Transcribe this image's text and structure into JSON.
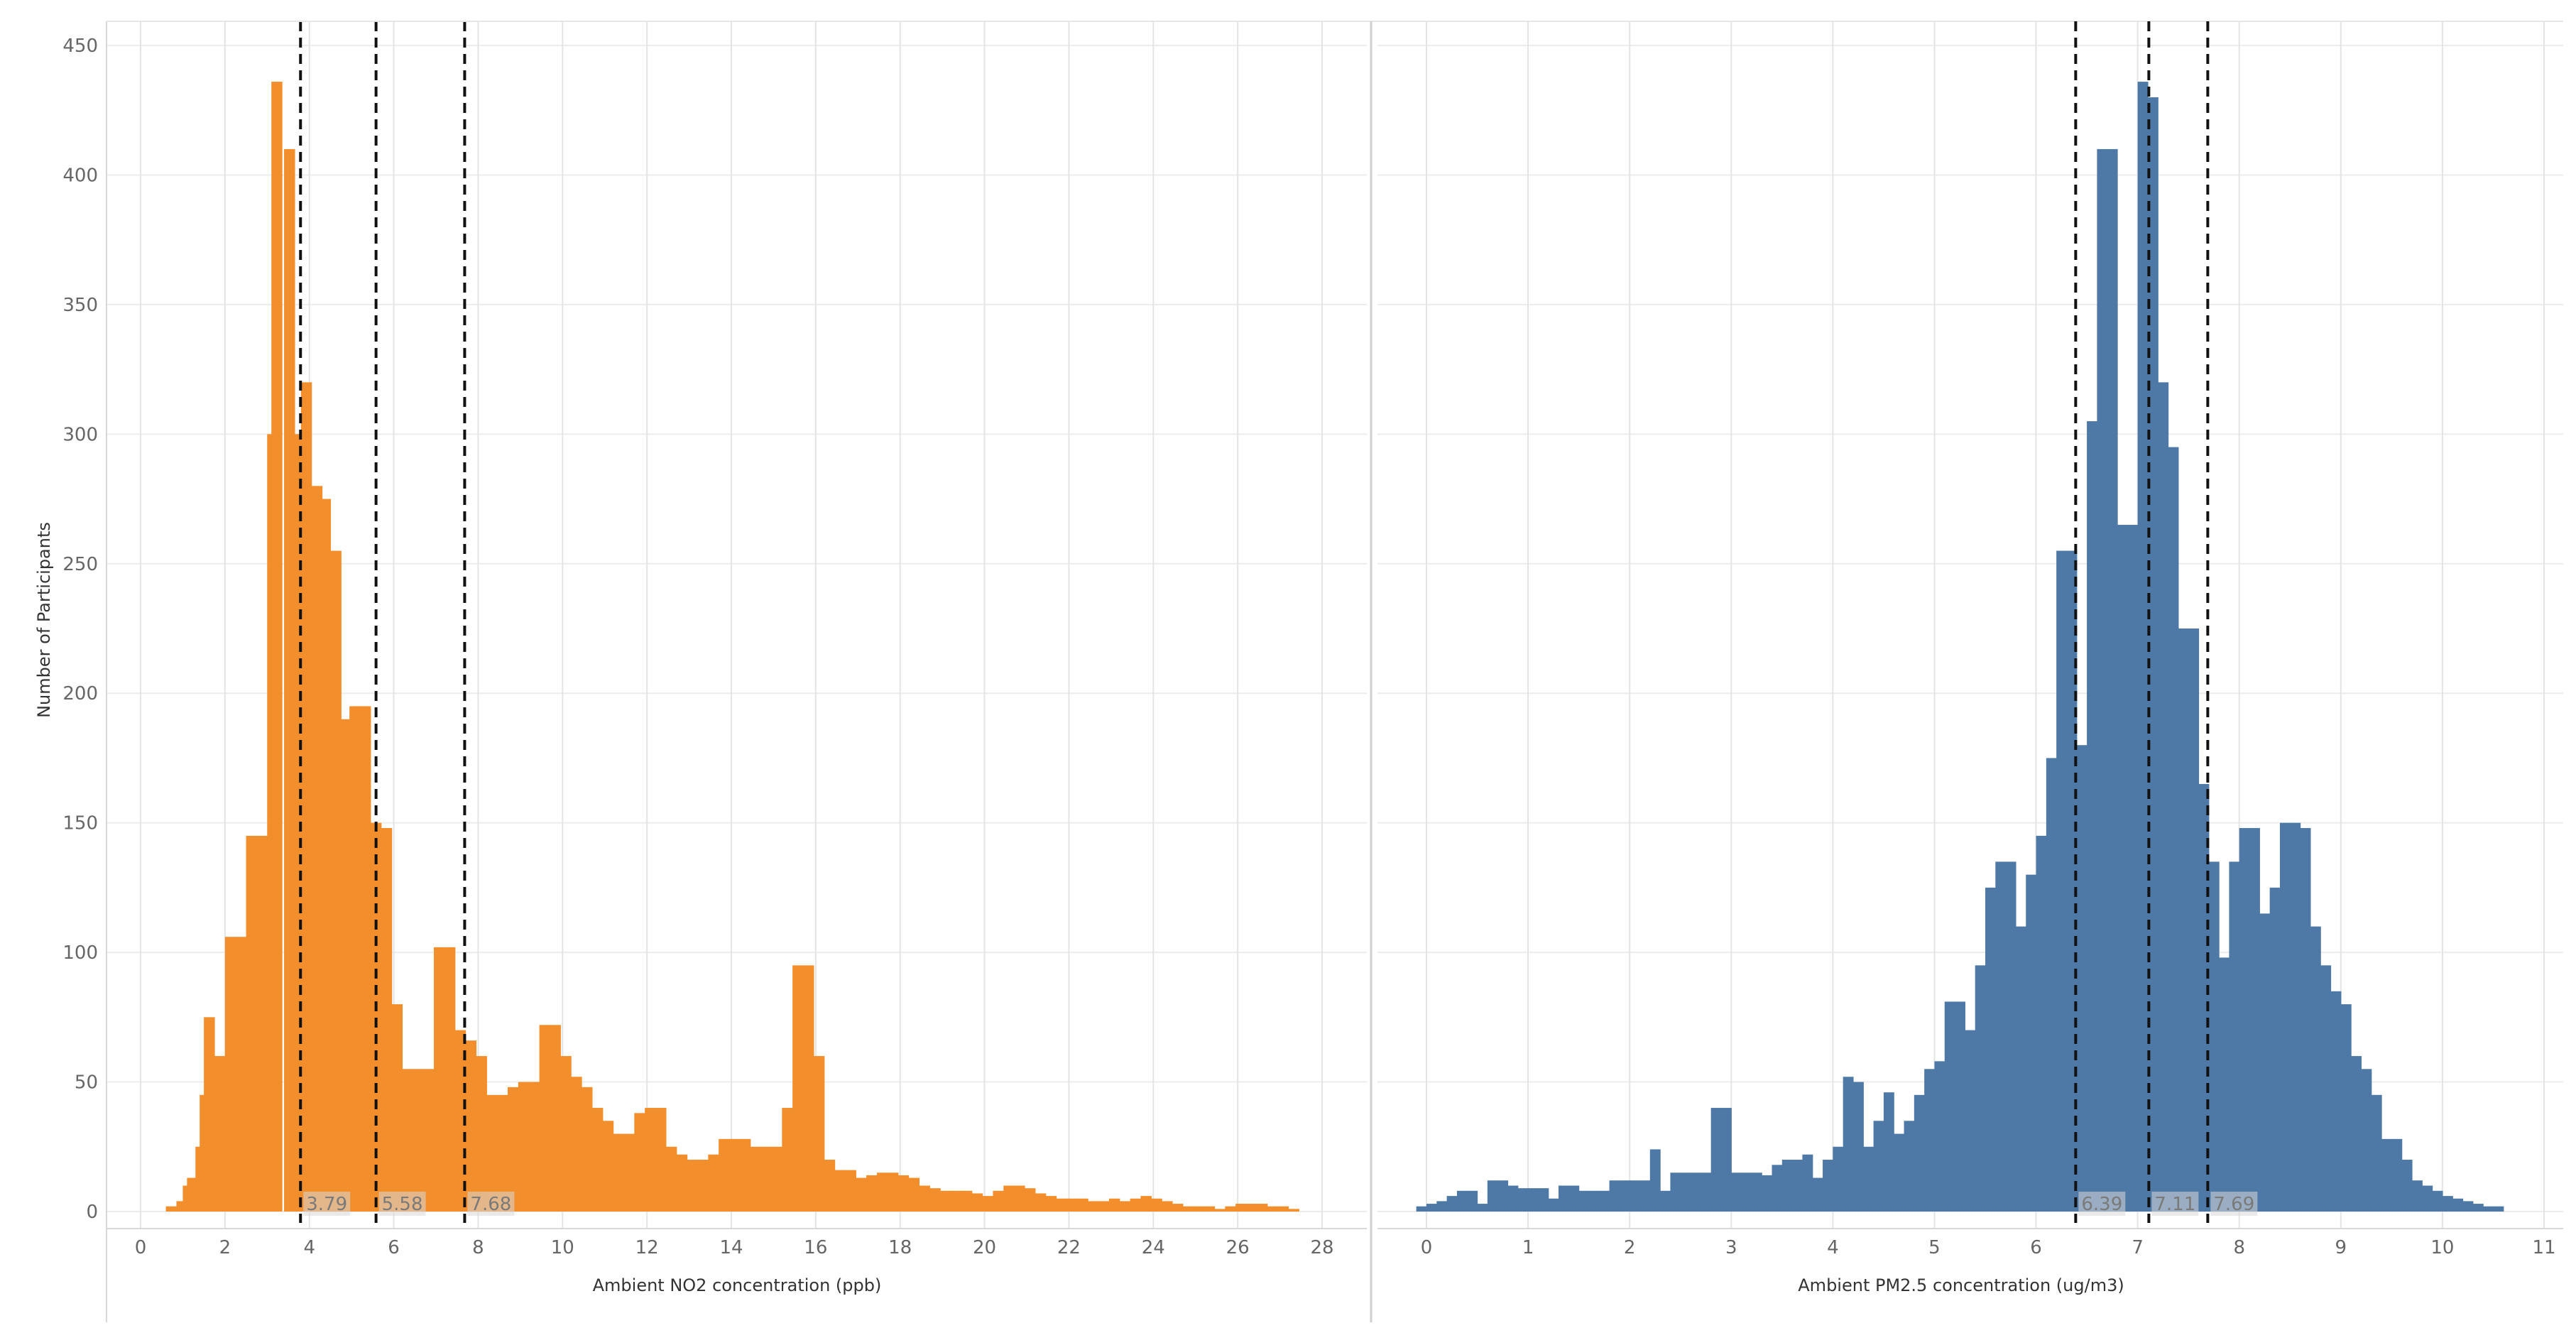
{
  "colors": {
    "no2_bar": "#f28e2b",
    "pm25_bar": "#4e79a7",
    "quartile_line": "#111111",
    "grid": "#ececec",
    "divider": "#d0d0d0"
  },
  "y_axis_title": "Number of Participants",
  "chart_data": [
    {
      "type": "bar",
      "subtype": "histogram",
      "xlabel": "Ambient NO2 concentration (ppb)",
      "ylabel": "Number of Participants",
      "xlim": [
        -0.5,
        28.7
      ],
      "ylim": [
        0,
        450
      ],
      "x_ticks": [
        0,
        2,
        4,
        6,
        8,
        10,
        12,
        14,
        16,
        18,
        20,
        22,
        24,
        26,
        28
      ],
      "y_ticks": [
        0,
        50,
        100,
        150,
        200,
        250,
        300,
        350,
        400,
        450
      ],
      "grid": true,
      "quartile_lines": [
        {
          "x": 3.79,
          "label": "3.79"
        },
        {
          "x": 5.58,
          "label": "5.58"
        },
        {
          "x": 7.68,
          "label": "7.68"
        }
      ],
      "bin_width": 0.25,
      "bins": [
        [
          0.6,
          2
        ],
        [
          0.85,
          4
        ],
        [
          1.0,
          10
        ],
        [
          1.1,
          13
        ],
        [
          1.3,
          25
        ],
        [
          1.4,
          45
        ],
        [
          1.5,
          75
        ],
        [
          1.75,
          60
        ],
        [
          2.0,
          106
        ],
        [
          2.25,
          106
        ],
        [
          2.5,
          145
        ],
        [
          2.75,
          145
        ],
        [
          3.0,
          300
        ],
        [
          3.1,
          436
        ],
        [
          3.4,
          410
        ],
        [
          3.6,
          300
        ],
        [
          3.8,
          320
        ],
        [
          4.05,
          280
        ],
        [
          4.25,
          275
        ],
        [
          4.5,
          255
        ],
        [
          4.7,
          190
        ],
        [
          4.95,
          195
        ],
        [
          5.2,
          195
        ],
        [
          5.45,
          150
        ],
        [
          5.7,
          148
        ],
        [
          5.95,
          80
        ],
        [
          6.2,
          55
        ],
        [
          6.45,
          55
        ],
        [
          6.7,
          55
        ],
        [
          6.95,
          102
        ],
        [
          7.2,
          102
        ],
        [
          7.45,
          70
        ],
        [
          7.7,
          66
        ],
        [
          7.95,
          60
        ],
        [
          8.2,
          45
        ],
        [
          8.45,
          45
        ],
        [
          8.7,
          48
        ],
        [
          8.95,
          50
        ],
        [
          9.2,
          50
        ],
        [
          9.45,
          72
        ],
        [
          9.7,
          72
        ],
        [
          9.95,
          60
        ],
        [
          10.2,
          52
        ],
        [
          10.45,
          48
        ],
        [
          10.7,
          40
        ],
        [
          10.95,
          35
        ],
        [
          11.2,
          30
        ],
        [
          11.45,
          30
        ],
        [
          11.7,
          38
        ],
        [
          11.95,
          40
        ],
        [
          12.2,
          40
        ],
        [
          12.45,
          25
        ],
        [
          12.7,
          22
        ],
        [
          12.95,
          20
        ],
        [
          13.2,
          20
        ],
        [
          13.45,
          22
        ],
        [
          13.7,
          28
        ],
        [
          13.95,
          28
        ],
        [
          14.2,
          28
        ],
        [
          14.45,
          25
        ],
        [
          14.7,
          25
        ],
        [
          14.95,
          25
        ],
        [
          15.2,
          40
        ],
        [
          15.45,
          95
        ],
        [
          15.7,
          95
        ],
        [
          15.95,
          60
        ],
        [
          16.2,
          20
        ],
        [
          16.45,
          16
        ],
        [
          16.7,
          16
        ],
        [
          16.95,
          13
        ],
        [
          17.2,
          14
        ],
        [
          17.45,
          15
        ],
        [
          17.7,
          15
        ],
        [
          17.95,
          14
        ],
        [
          18.2,
          13
        ],
        [
          18.45,
          10
        ],
        [
          18.7,
          9
        ],
        [
          18.95,
          8
        ],
        [
          19.2,
          8
        ],
        [
          19.45,
          8
        ],
        [
          19.7,
          7
        ],
        [
          19.95,
          6
        ],
        [
          20.2,
          8
        ],
        [
          20.45,
          10
        ],
        [
          20.7,
          10
        ],
        [
          20.95,
          9
        ],
        [
          21.2,
          7
        ],
        [
          21.45,
          6
        ],
        [
          21.7,
          5
        ],
        [
          21.95,
          5
        ],
        [
          22.2,
          5
        ],
        [
          22.45,
          4
        ],
        [
          22.7,
          4
        ],
        [
          22.95,
          5
        ],
        [
          23.2,
          4
        ],
        [
          23.45,
          5
        ],
        [
          23.7,
          6
        ],
        [
          23.95,
          5
        ],
        [
          24.2,
          4
        ],
        [
          24.45,
          3
        ],
        [
          24.7,
          2
        ],
        [
          24.95,
          2
        ],
        [
          25.2,
          2
        ],
        [
          25.45,
          1
        ],
        [
          25.7,
          2
        ],
        [
          25.95,
          3
        ],
        [
          26.2,
          3
        ],
        [
          26.45,
          3
        ],
        [
          26.7,
          2
        ],
        [
          26.95,
          2
        ],
        [
          27.2,
          1
        ]
      ]
    },
    {
      "type": "bar",
      "subtype": "histogram",
      "xlabel": "Ambient PM2.5 concentration (ug/m3)",
      "ylabel": "Number of Participants",
      "xlim": [
        -0.3,
        11.2
      ],
      "ylim": [
        0,
        450
      ],
      "x_ticks": [
        0,
        1,
        2,
        3,
        4,
        5,
        6,
        7,
        8,
        9,
        10,
        11
      ],
      "y_ticks": [
        0,
        50,
        100,
        150,
        200,
        250,
        300,
        350,
        400,
        450
      ],
      "grid": true,
      "quartile_lines": [
        {
          "x": 6.39,
          "label": "6.39"
        },
        {
          "x": 7.11,
          "label": "7.11"
        },
        {
          "x": 7.69,
          "label": "7.69"
        }
      ],
      "bin_width": 0.1,
      "bins": [
        [
          -0.1,
          2
        ],
        [
          0.0,
          3
        ],
        [
          0.1,
          4
        ],
        [
          0.2,
          6
        ],
        [
          0.3,
          8
        ],
        [
          0.4,
          8
        ],
        [
          0.5,
          3
        ],
        [
          0.6,
          12
        ],
        [
          0.7,
          12
        ],
        [
          0.8,
          10
        ],
        [
          0.9,
          9
        ],
        [
          1.0,
          9
        ],
        [
          1.1,
          9
        ],
        [
          1.2,
          5
        ],
        [
          1.3,
          10
        ],
        [
          1.4,
          10
        ],
        [
          1.5,
          8
        ],
        [
          1.6,
          8
        ],
        [
          1.7,
          8
        ],
        [
          1.8,
          12
        ],
        [
          1.9,
          12
        ],
        [
          2.0,
          12
        ],
        [
          2.1,
          12
        ],
        [
          2.2,
          24
        ],
        [
          2.3,
          8
        ],
        [
          2.4,
          15
        ],
        [
          2.5,
          15
        ],
        [
          2.6,
          15
        ],
        [
          2.7,
          15
        ],
        [
          2.8,
          40
        ],
        [
          2.9,
          40
        ],
        [
          3.0,
          15
        ],
        [
          3.1,
          15
        ],
        [
          3.2,
          15
        ],
        [
          3.3,
          14
        ],
        [
          3.4,
          18
        ],
        [
          3.5,
          20
        ],
        [
          3.6,
          20
        ],
        [
          3.7,
          22
        ],
        [
          3.8,
          13
        ],
        [
          3.9,
          20
        ],
        [
          4.0,
          25
        ],
        [
          4.1,
          52
        ],
        [
          4.2,
          50
        ],
        [
          4.3,
          25
        ],
        [
          4.4,
          35
        ],
        [
          4.5,
          46
        ],
        [
          4.6,
          30
        ],
        [
          4.7,
          35
        ],
        [
          4.8,
          45
        ],
        [
          4.9,
          55
        ],
        [
          5.0,
          58
        ],
        [
          5.1,
          81
        ],
        [
          5.2,
          81
        ],
        [
          5.3,
          70
        ],
        [
          5.4,
          95
        ],
        [
          5.5,
          125
        ],
        [
          5.6,
          135
        ],
        [
          5.7,
          135
        ],
        [
          5.8,
          110
        ],
        [
          5.9,
          130
        ],
        [
          6.0,
          145
        ],
        [
          6.1,
          175
        ],
        [
          6.2,
          255
        ],
        [
          6.3,
          255
        ],
        [
          6.4,
          180
        ],
        [
          6.5,
          305
        ],
        [
          6.6,
          410
        ],
        [
          6.7,
          410
        ],
        [
          6.8,
          265
        ],
        [
          6.9,
          265
        ],
        [
          7.0,
          436
        ],
        [
          7.1,
          430
        ],
        [
          7.2,
          320
        ],
        [
          7.3,
          295
        ],
        [
          7.4,
          225
        ],
        [
          7.5,
          225
        ],
        [
          7.6,
          165
        ],
        [
          7.7,
          135
        ],
        [
          7.8,
          98
        ],
        [
          7.9,
          135
        ],
        [
          8.0,
          148
        ],
        [
          8.1,
          148
        ],
        [
          8.2,
          115
        ],
        [
          8.3,
          125
        ],
        [
          8.4,
          150
        ],
        [
          8.5,
          150
        ],
        [
          8.6,
          148
        ],
        [
          8.7,
          110
        ],
        [
          8.8,
          95
        ],
        [
          8.9,
          85
        ],
        [
          9.0,
          80
        ],
        [
          9.1,
          60
        ],
        [
          9.2,
          55
        ],
        [
          9.3,
          45
        ],
        [
          9.4,
          28
        ],
        [
          9.5,
          28
        ],
        [
          9.6,
          20
        ],
        [
          9.7,
          12
        ],
        [
          9.8,
          10
        ],
        [
          9.9,
          8
        ],
        [
          10.0,
          6
        ],
        [
          10.1,
          5
        ],
        [
          10.2,
          4
        ],
        [
          10.3,
          3
        ],
        [
          10.4,
          2
        ],
        [
          10.5,
          2
        ]
      ]
    }
  ]
}
